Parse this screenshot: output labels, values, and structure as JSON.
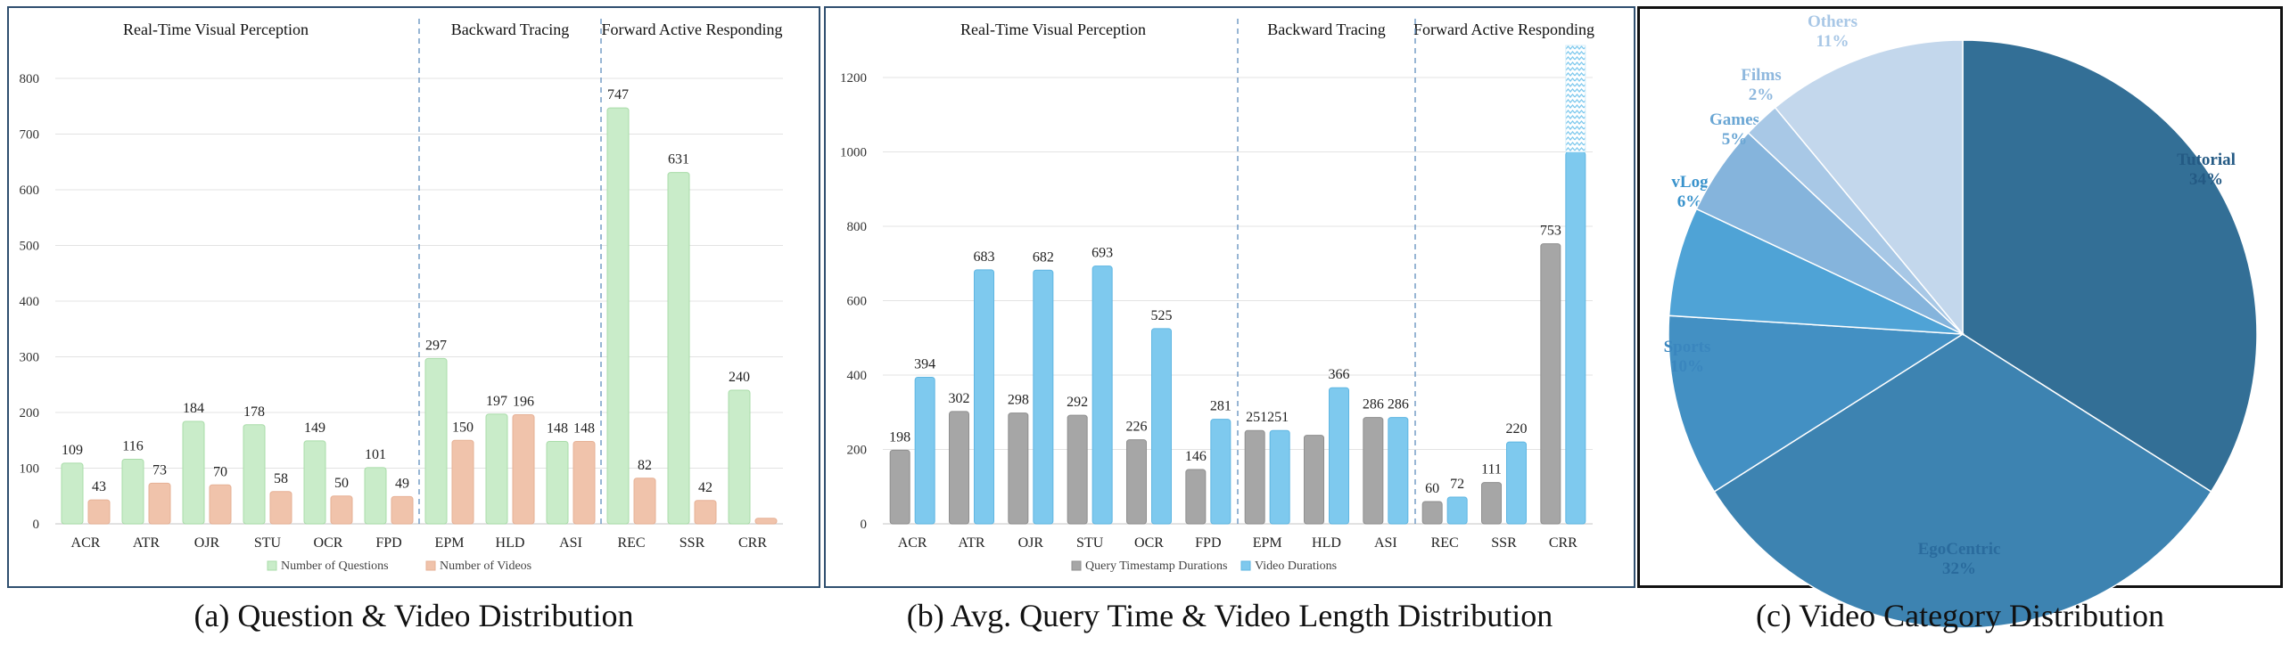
{
  "captions": {
    "a": "(a) Question & Video Distribution",
    "b": "(b) Avg. Query Time & Video Length Distribution",
    "c": "(c) Video Category Distribution"
  },
  "chart_data": [
    {
      "type": "bar",
      "sections": [
        {
          "label": "Real-Time Visual Perception",
          "categories": [
            "ACR",
            "ATR",
            "OJR",
            "STU",
            "OCR",
            "FPD"
          ]
        },
        {
          "label": "Backward Tracing",
          "categories": [
            "EPM",
            "HLD",
            "ASI"
          ]
        },
        {
          "label": "Forward Active Responding",
          "categories": [
            "REC",
            "SSR",
            "CRR"
          ]
        }
      ],
      "categories": [
        "ACR",
        "ATR",
        "OJR",
        "STU",
        "OCR",
        "FPD",
        "EPM",
        "HLD",
        "ASI",
        "REC",
        "SSR",
        "CRR"
      ],
      "series": [
        {
          "name": "Number of Questions",
          "color": "#c9ecc9",
          "stroke": "#a9dca9",
          "values": [
            109,
            116,
            184,
            178,
            149,
            101,
            297,
            197,
            148,
            747,
            631,
            240
          ],
          "labels": [
            "109",
            "116",
            "184",
            "178",
            "149",
            "101",
            "297",
            "197",
            "148",
            "747",
            "631",
            "240"
          ]
        },
        {
          "name": "Number of Videos",
          "color": "#f0c3ab",
          "stroke": "#e6b196",
          "values": [
            43,
            73,
            70,
            58,
            50,
            49,
            150,
            196,
            148,
            82,
            42,
            10
          ],
          "labels": [
            "43",
            "73",
            "70",
            "58",
            "50",
            "49",
            "150",
            "196",
            "148",
            "82",
            "42",
            ""
          ]
        }
      ],
      "yticks": [
        "0",
        "100",
        "200",
        "300",
        "400",
        "500",
        "600",
        "700",
        "800"
      ],
      "ylim": [
        0,
        800
      ],
      "grid": true,
      "legend": "bottom"
    },
    {
      "type": "bar",
      "sections": [
        {
          "label": "Real-Time Visual Perception",
          "categories": [
            "ACR",
            "ATR",
            "OJR",
            "STU",
            "OCR",
            "FPD"
          ]
        },
        {
          "label": "Backward Tracing",
          "categories": [
            "EPM",
            "HLD",
            "ASI"
          ]
        },
        {
          "label": "Forward Active Responding",
          "categories": [
            "REC",
            "SSR",
            "CRR"
          ]
        }
      ],
      "categories": [
        "ACR",
        "ATR",
        "OJR",
        "STU",
        "OCR",
        "FPD",
        "EPM",
        "HLD",
        "ASI",
        "REC",
        "SSR",
        "CRR"
      ],
      "series": [
        {
          "name": "Query Timestamp Durations",
          "color": "#a6a6a6",
          "stroke": "#8f8f8f",
          "values": [
            198,
            302,
            298,
            292,
            226,
            146,
            251,
            238,
            286,
            60,
            111,
            753
          ],
          "labels": [
            "198",
            "302",
            "298",
            "292",
            "226",
            "146",
            "251",
            "",
            "286",
            "60",
            "111",
            "753"
          ]
        },
        {
          "name": "Video Durations",
          "color": "#7ec9ee",
          "stroke": "#5fb6e2",
          "values": [
            394,
            683,
            682,
            693,
            525,
            281,
            251,
            366,
            286,
            72,
            220,
            1000
          ],
          "labels": [
            "394",
            "683",
            "682",
            "693",
            "525",
            "281",
            "251",
            "366",
            "286",
            "72",
            "220",
            ""
          ]
        }
      ],
      "combined_labels": [
        {
          "category": "EPM",
          "text": "251251"
        }
      ],
      "hatched_overflow": {
        "category": "CRR",
        "series": "Video Durations"
      },
      "yticks": [
        "0",
        "200",
        "400",
        "600",
        "800",
        "1000",
        "1200"
      ],
      "ylim": [
        0,
        1200
      ],
      "grid": true,
      "legend": "bottom"
    },
    {
      "type": "pie",
      "slices": [
        {
          "label": "Tutorial",
          "value": 34,
          "pct": "34%",
          "color": "#336f96",
          "text_color": "#245a84"
        },
        {
          "label": "EgoCentric",
          "value": 32,
          "pct": "32%",
          "color": "#3d83b1",
          "text_color": "#2a6b9d"
        },
        {
          "label": "Sports",
          "value": 10,
          "pct": "10%",
          "color": "#4390c3",
          "text_color": "#3a86be"
        },
        {
          "label": "vLog",
          "value": 6,
          "pct": "6%",
          "color": "#4fa3d6",
          "text_color": "#3a93cc"
        },
        {
          "label": "Games",
          "value": 5,
          "pct": "5%",
          "color": "#85b4dc",
          "text_color": "#6aa6d4"
        },
        {
          "label": "Films",
          "value": 2,
          "pct": "2%",
          "color": "#a8c8e6",
          "text_color": "#8fb8de"
        },
        {
          "label": "Others",
          "value": 11,
          "pct": "11%",
          "color": "#c3d7ec",
          "text_color": "#a8c7e6"
        }
      ]
    }
  ]
}
